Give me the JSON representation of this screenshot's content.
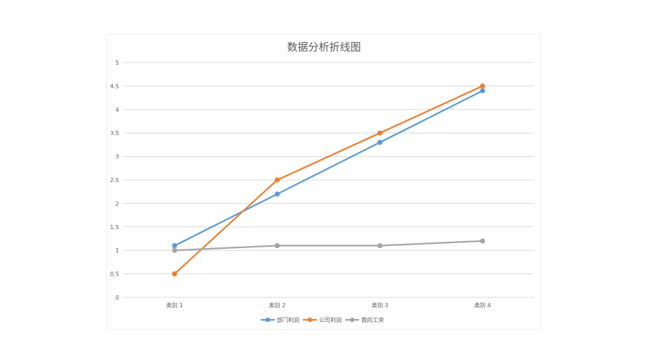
{
  "chart_data": {
    "type": "line",
    "title": "数据分析折线图",
    "categories": [
      "类别 1",
      "类别 2",
      "类别 3",
      "类别 4"
    ],
    "series": [
      {
        "name": "部门利润",
        "color": "#5b9bd5",
        "values": [
          1.1,
          2.2,
          3.3,
          4.4
        ]
      },
      {
        "name": "公司利润",
        "color": "#ed7d31",
        "values": [
          0.5,
          2.5,
          3.5,
          4.5
        ]
      },
      {
        "name": "我的工资",
        "color": "#a5a5a5",
        "values": [
          1.0,
          1.1,
          1.1,
          1.2
        ]
      }
    ],
    "yticks": [
      "0",
      "0.5",
      "1",
      "1.5",
      "2",
      "2.5",
      "3",
      "3.5",
      "4",
      "4.5",
      "5"
    ],
    "ylim": [
      0,
      5
    ],
    "grid": true,
    "legend": "bottom"
  }
}
